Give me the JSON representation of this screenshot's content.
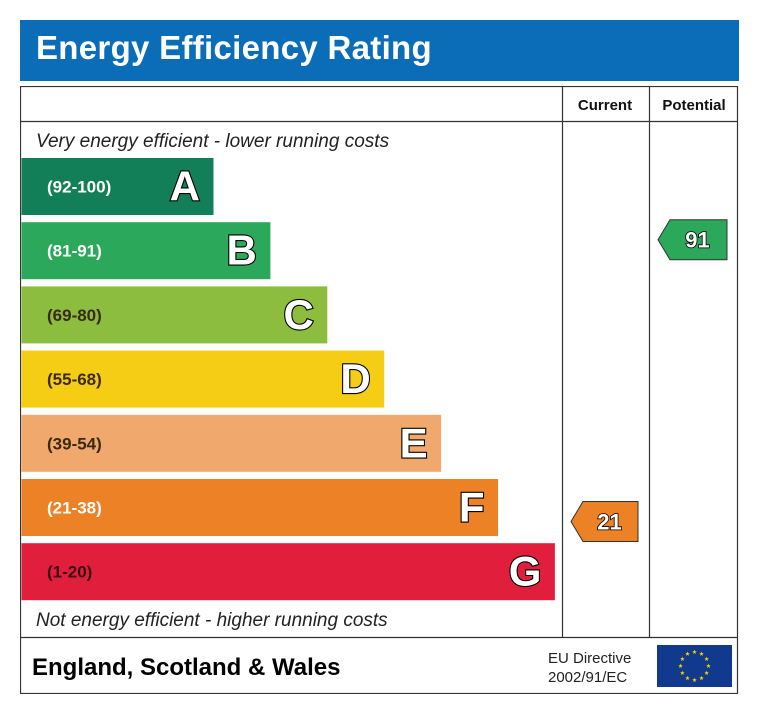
{
  "header": {
    "title": "Energy Efficiency Rating"
  },
  "columns": {
    "current": "Current",
    "potential": "Potential"
  },
  "top_note": "Very energy efficient - lower running costs",
  "bottom_note": "Not energy efficient - higher running costs",
  "footer": {
    "region": "England, Scotland & Wales",
    "directive_line1": "EU Directive",
    "directive_line2": "2002/91/EC",
    "flag_icon": "eu-flag-icon"
  },
  "chart_data": {
    "type": "bar",
    "categories": [
      "A",
      "B",
      "C",
      "D",
      "E",
      "F",
      "G"
    ],
    "bands": [
      {
        "letter": "A",
        "range": "(92-100)",
        "color": "#137f58"
      },
      {
        "letter": "B",
        "range": "(81-91)",
        "color": "#2ba85a"
      },
      {
        "letter": "C",
        "range": "(69-80)",
        "color": "#8dbd3f"
      },
      {
        "letter": "D",
        "range": "(55-68)",
        "color": "#f5cd14"
      },
      {
        "letter": "E",
        "range": "(39-54)",
        "color": "#f1a86c"
      },
      {
        "letter": "F",
        "range": "(21-38)",
        "color": "#ec8125"
      },
      {
        "letter": "G",
        "range": "(1-20)",
        "color": "#e11f3c"
      }
    ],
    "current": {
      "value": 21,
      "band": "F",
      "color": "#ec8125"
    },
    "potential": {
      "value": 91,
      "band": "B",
      "color": "#2ba85a"
    }
  }
}
